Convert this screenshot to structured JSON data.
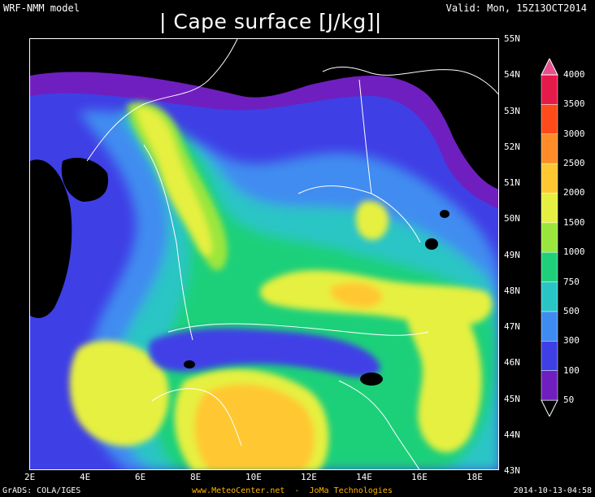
{
  "header": {
    "model": "WRF-NMM model",
    "valid": "Valid: Mon, 15Z13OCT2014",
    "title": "| Cape surface [J/kg]|"
  },
  "axes": {
    "lat_labels": [
      "55N",
      "54N",
      "53N",
      "52N",
      "51N",
      "50N",
      "49N",
      "48N",
      "47N",
      "46N",
      "45N",
      "44N",
      "43N"
    ],
    "lon_labels": [
      "2E",
      "4E",
      "6E",
      "8E",
      "10E",
      "12E",
      "14E",
      "16E",
      "18E"
    ]
  },
  "colorbar": {
    "levels": [
      "50",
      "100",
      "300",
      "500",
      "750",
      "1000",
      "1500",
      "2000",
      "2500",
      "3000",
      "3500",
      "4000"
    ],
    "colors": [
      "#000000",
      "#6f1fbf",
      "#3f3fe6",
      "#3f8cf0",
      "#29c5c5",
      "#1fd07a",
      "#9be63c",
      "#e6f040",
      "#ffc832",
      "#ff8c28",
      "#ff4a1a",
      "#e6194b",
      "#e6508c"
    ]
  },
  "footer": {
    "left": "GrADS: COLA/IGES",
    "center": "www.MeteoCenter.net  -  JoMa Technologies",
    "right": "2014-10-13-04:58"
  },
  "map": {
    "field": "Cape surface",
    "background_color": "#000000",
    "region": "Central Europe / Alps"
  }
}
